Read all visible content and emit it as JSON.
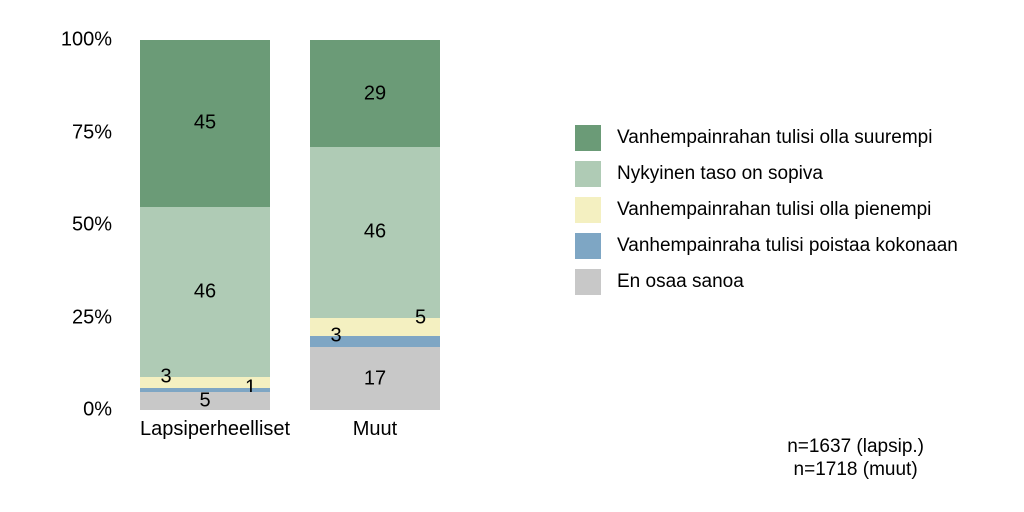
{
  "chart": {
    "type": "stacked-bar-percent",
    "background_color": "#ffffff",
    "text_color": "#000000",
    "axis_fontsize": 20,
    "label_fontsize": 20,
    "y": {
      "min": 0,
      "max": 100,
      "step": 25,
      "ticks": [
        {
          "v": 0,
          "label": "0%"
        },
        {
          "v": 25,
          "label": "25%"
        },
        {
          "v": 50,
          "label": "50%"
        },
        {
          "v": 75,
          "label": "75%"
        },
        {
          "v": 100,
          "label": "100%"
        }
      ]
    },
    "series": [
      {
        "key": "suurempi",
        "label": "Vanhempainrahan tulisi olla suurempi",
        "color": "#6b9b77"
      },
      {
        "key": "sopiva",
        "label": "Nykyinen taso on sopiva",
        "color": "#afcbb5"
      },
      {
        "key": "pienempi",
        "label": "Vanhempainrahan tulisi olla pienempi",
        "color": "#f4f0c1"
      },
      {
        "key": "poistaa",
        "label": "Vanhempainraha tulisi poistaa kokonaan",
        "color": "#7ea6c4"
      },
      {
        "key": "eos",
        "label": "En osaa sanoa",
        "color": "#c8c8c8"
      }
    ],
    "categories": [
      {
        "name": "Lapsiperheelliset",
        "segments": [
          {
            "key": "suurempi",
            "value": 45,
            "label": "45",
            "label_pos": "center"
          },
          {
            "key": "sopiva",
            "value": 46,
            "label": "46",
            "label_pos": "center"
          },
          {
            "key": "pienempi",
            "value": 3,
            "label": "3",
            "label_pos": "out-left"
          },
          {
            "key": "poistaa",
            "value": 1,
            "label": "1",
            "label_pos": "out-right"
          },
          {
            "key": "eos",
            "value": 5,
            "label": "5",
            "label_pos": "center"
          }
        ]
      },
      {
        "name": "Muut",
        "segments": [
          {
            "key": "suurempi",
            "value": 29,
            "label": "29",
            "label_pos": "center"
          },
          {
            "key": "sopiva",
            "value": 46,
            "label": "46",
            "label_pos": "center"
          },
          {
            "key": "pienempi",
            "value": 5,
            "label": "5",
            "label_pos": "out-right"
          },
          {
            "key": "poistaa",
            "value": 3,
            "label": "3",
            "label_pos": "out-left"
          },
          {
            "key": "eos",
            "value": 17,
            "label": "17",
            "label_pos": "center"
          }
        ]
      }
    ],
    "legend_fontsize": 19,
    "footnote": {
      "line1": "n=1637 (lapsip.)",
      "line2": "n=1718 (muut)",
      "fontsize": 19
    }
  }
}
